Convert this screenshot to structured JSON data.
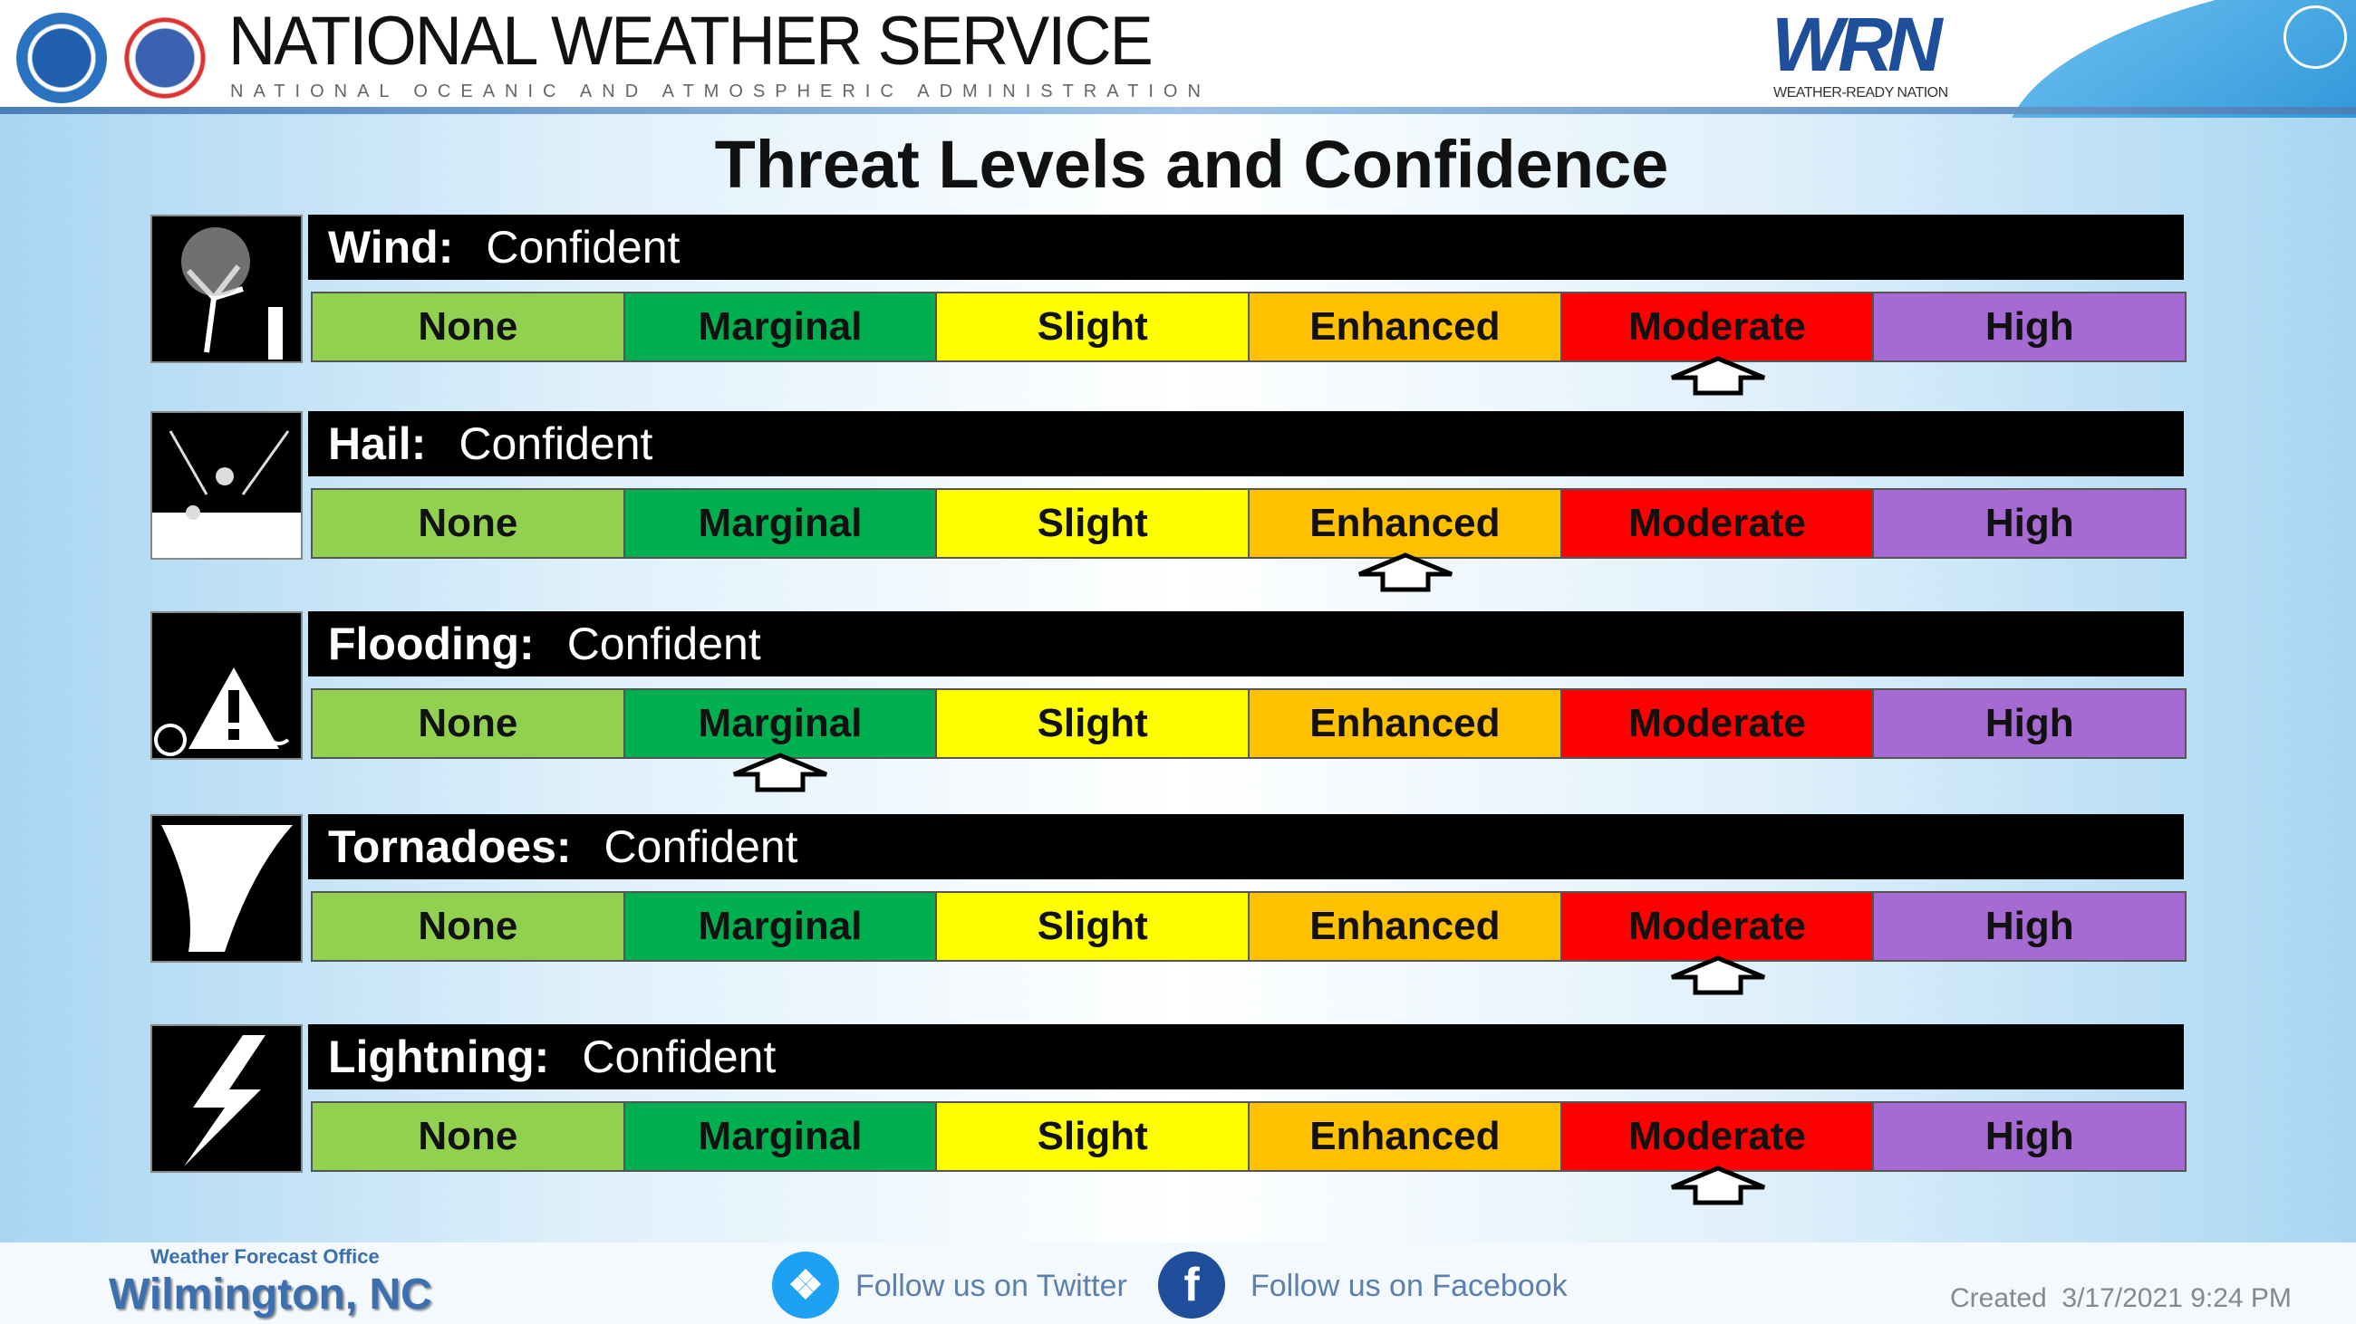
{
  "header": {
    "title": "NATIONAL WEATHER SERVICE",
    "subtitle": "NATIONAL OCEANIC AND ATMOSPHERIC ADMINISTRATION",
    "wrn_logo": "WRN",
    "wrn_tagline": "WEATHER-READY NATION"
  },
  "main_title": "Threat Levels and Confidence",
  "levels": [
    "None",
    "Marginal",
    "Slight",
    "Enhanced",
    "Moderate",
    "High"
  ],
  "level_colors": [
    "#92d050",
    "#00b050",
    "#ffff00",
    "#ffc000",
    "#ff0000",
    "#a66bd3"
  ],
  "threats": [
    {
      "name": "Wind:",
      "confidence": "Confident",
      "level": "Moderate",
      "icon": "wind-tree-icon"
    },
    {
      "name": "Hail:",
      "confidence": "Confident",
      "level": "Enhanced",
      "icon": "hail-icon"
    },
    {
      "name": "Flooding:",
      "confidence": "Confident",
      "level": "Marginal",
      "icon": "flood-car-icon"
    },
    {
      "name": "Tornadoes:",
      "confidence": "Confident",
      "level": "Moderate",
      "icon": "tornado-icon"
    },
    {
      "name": "Lightning:",
      "confidence": "Confident",
      "level": "Moderate",
      "icon": "lightning-icon"
    }
  ],
  "footer": {
    "office_label": "Weather Forecast Office",
    "office_name": "Wilmington, NC",
    "twitter": "Follow us on Twitter",
    "facebook": "Follow us on Facebook",
    "created": "Created  3/17/2021 9:24 PM"
  }
}
